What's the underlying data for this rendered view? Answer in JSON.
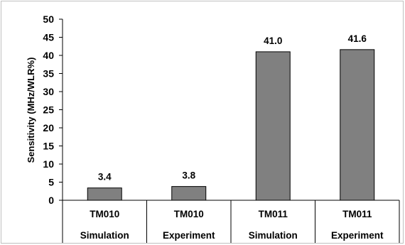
{
  "chart_data": {
    "type": "bar",
    "ylabel": "Sensitivity (MHz/WLR%)",
    "ylim": [
      0,
      50
    ],
    "yticks": [
      "0",
      "5",
      "10",
      "15",
      "20",
      "25",
      "30",
      "35",
      "40",
      "45",
      "50"
    ],
    "grid": false,
    "bar_color": "#808080",
    "categories": [
      {
        "mode": "TM010",
        "kind": "Simulation"
      },
      {
        "mode": "TM010",
        "kind": "Experiment"
      },
      {
        "mode": "TM011",
        "kind": "Simulation"
      },
      {
        "mode": "TM011",
        "kind": "Experiment"
      }
    ],
    "values": [
      3.4,
      3.8,
      41.0,
      41.6
    ],
    "data_labels": [
      "3.4",
      "3.8",
      "41.0",
      "41.6"
    ]
  }
}
